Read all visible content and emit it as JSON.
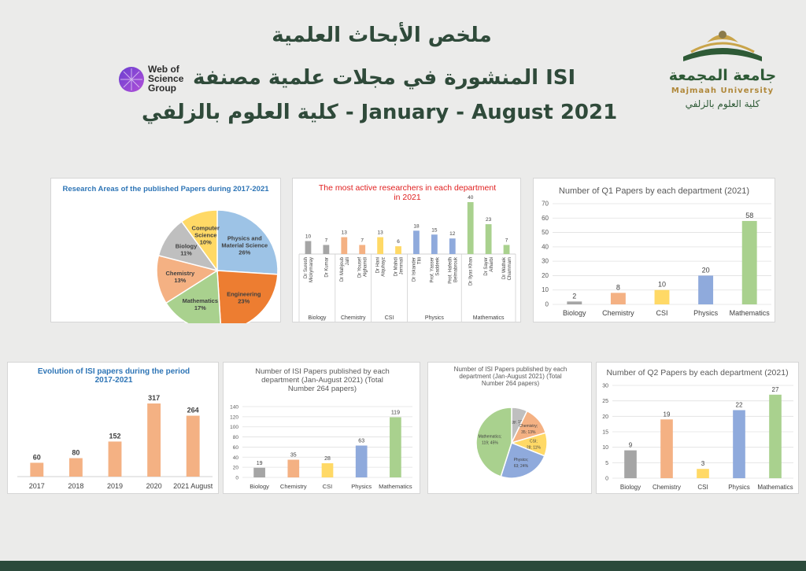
{
  "header": {
    "title_line1": "ملخص الأبحاث العلمية",
    "title_line2": "المنشورة في مجلات علمية مصنفة ISI",
    "title_line3": "كلية العلوم بالزلفي -  January - August 2021",
    "wos_logo": {
      "line1": "Web of",
      "line2": "Science",
      "line3": "Group"
    },
    "university_logo": {
      "arabic": "جامعة المجمعة",
      "english": "Majmaah University",
      "college": "كلية العلوم بالزلفي"
    }
  },
  "colors": {
    "biology": "#a5a5a5",
    "chemistry": "#f4b183",
    "csi": "#ffd966",
    "physics": "#8faadc",
    "mathematics": "#a9d18e",
    "evolution": "#f4b183",
    "header_green": "#2f4a3a"
  },
  "chart_data": [
    {
      "id": "pie-areas",
      "type": "pie",
      "title": "Research Areas of the published Papers during 2017-2021",
      "slices": [
        {
          "label": "Physics and Material Science",
          "value": 26,
          "pct": "26%",
          "color": "#9dc3e6"
        },
        {
          "label": "Engineering",
          "value": 23,
          "pct": "23%",
          "color": "#ed7d31"
        },
        {
          "label": "Mathematics",
          "value": 17,
          "pct": "17%",
          "color": "#a9d18e"
        },
        {
          "label": "Chemistry",
          "value": 13,
          "pct": "13%",
          "color": "#f4b183"
        },
        {
          "label": "Biology",
          "value": 11,
          "pct": "11%",
          "color": "#bfbfbf"
        },
        {
          "label": "Computer Science",
          "value": 10,
          "pct": "10%",
          "color": "#ffd966"
        }
      ]
    },
    {
      "id": "researchers",
      "type": "bar",
      "title": "The most active researchers in each department in 2021",
      "bars": [
        {
          "name": "Dr Suresh Mickymaray",
          "value": 10,
          "group": "Biology",
          "color": "#a5a5a5"
        },
        {
          "name": "Dr Kumar",
          "value": 7,
          "group": "Biology",
          "color": "#a5a5a5"
        },
        {
          "name": "Dr Mahjoub Jalli",
          "value": 13,
          "group": "Chemistry",
          "color": "#f4b183"
        },
        {
          "name": "Dr Yousef Alghamdi",
          "value": 7,
          "group": "Chemistry",
          "color": "#f4b183"
        },
        {
          "name": "Dr Hani Alquhayz",
          "value": 13,
          "group": "CSI",
          "color": "#ffd966"
        },
        {
          "name": "Dr Mahdi Jemmali",
          "value": 6,
          "group": "CSI",
          "color": "#ffd966"
        },
        {
          "name": "Dr Iskander Tlili",
          "value": 18,
          "group": "Physics",
          "color": "#8faadc"
        },
        {
          "name": "Prof. Yasser Saddeek",
          "value": 15,
          "group": "Physics",
          "color": "#8faadc"
        },
        {
          "name": "Prof. Hafedh Belmabrouk",
          "value": 12,
          "group": "Physics",
          "color": "#8faadc"
        },
        {
          "name": "Dr Ilyas Khan",
          "value": 40,
          "group": "Mathematics",
          "color": "#a9d18e"
        },
        {
          "name": "Dr Sayer Alharbi",
          "value": 23,
          "group": "Mathematics",
          "color": "#a9d18e"
        },
        {
          "name": "Dr Wathek Chammam",
          "value": 7,
          "group": "Mathematics",
          "color": "#a9d18e"
        }
      ],
      "groups": [
        "Biology",
        "Chemistry",
        "CSI",
        "Physics",
        "Mathematics"
      ]
    },
    {
      "id": "q1",
      "type": "bar",
      "title": "Number of Q1 Papers by each department (2021)",
      "categories": [
        "Biology",
        "Chemistry",
        "CSI",
        "Physics",
        "Mathematics"
      ],
      "values": [
        2,
        8,
        10,
        20,
        58
      ],
      "colors": [
        "#a5a5a5",
        "#f4b183",
        "#ffd966",
        "#8faadc",
        "#a9d18e"
      ],
      "ylim": [
        0,
        70
      ],
      "yticks": [
        0,
        10,
        20,
        30,
        40,
        50,
        60,
        70
      ],
      "grid": true
    },
    {
      "id": "evolution",
      "type": "bar",
      "title": "Evolution of ISI papers during  the period 2017-2021",
      "categories": [
        "2017",
        "2018",
        "2019",
        "2020",
        "2021 August"
      ],
      "values": [
        60,
        80,
        152,
        317,
        264
      ],
      "colors": [
        "#f4b183",
        "#f4b183",
        "#f4b183",
        "#f4b183",
        "#f4b183"
      ],
      "ylim": [
        0,
        317
      ]
    },
    {
      "id": "isi-dept",
      "type": "bar",
      "title": "Number of ISI Papers published by each department (Jan-August 2021) (Total Number 264 papers)",
      "categories": [
        "Biology",
        "Chemistry",
        "CSI",
        "Physics",
        "Mathematics"
      ],
      "values": [
        19,
        35,
        28,
        63,
        119
      ],
      "colors": [
        "#a5a5a5",
        "#f4b183",
        "#ffd966",
        "#8faadc",
        "#a9d18e"
      ],
      "ylim": [
        0,
        140
      ],
      "yticks": [
        0,
        20,
        40,
        60,
        80,
        100,
        120,
        140
      ],
      "grid": true
    },
    {
      "id": "pie-dept",
      "type": "pie",
      "title": "Number of ISI Papers published by each department (Jan-August 2021) (Total Number 264 papers)",
      "slices": [
        {
          "label": "Biology; 19; 7%",
          "value": 19,
          "color": "#bfbfbf"
        },
        {
          "label": "Chemistry; 35; 13%",
          "value": 35,
          "color": "#f4b183"
        },
        {
          "label": "CSI; 28; 11%",
          "value": 28,
          "color": "#ffd966"
        },
        {
          "label": "Physics; 63; 24%",
          "value": 63,
          "color": "#8faadc"
        },
        {
          "label": "Mathematics; 119; 45%",
          "value": 119,
          "color": "#a9d18e"
        }
      ]
    },
    {
      "id": "q2",
      "type": "bar",
      "title": "Number of Q2 Papers by each department (2021)",
      "categories": [
        "Biology",
        "Chemistry",
        "CSI",
        "Physics",
        "Mathematics"
      ],
      "values": [
        9,
        19,
        3,
        22,
        27
      ],
      "colors": [
        "#a5a5a5",
        "#f4b183",
        "#ffd966",
        "#8faadc",
        "#a9d18e"
      ],
      "ylim": [
        0,
        30
      ],
      "yticks": [
        0,
        5,
        10,
        15,
        20,
        25,
        30
      ],
      "grid": true
    }
  ]
}
